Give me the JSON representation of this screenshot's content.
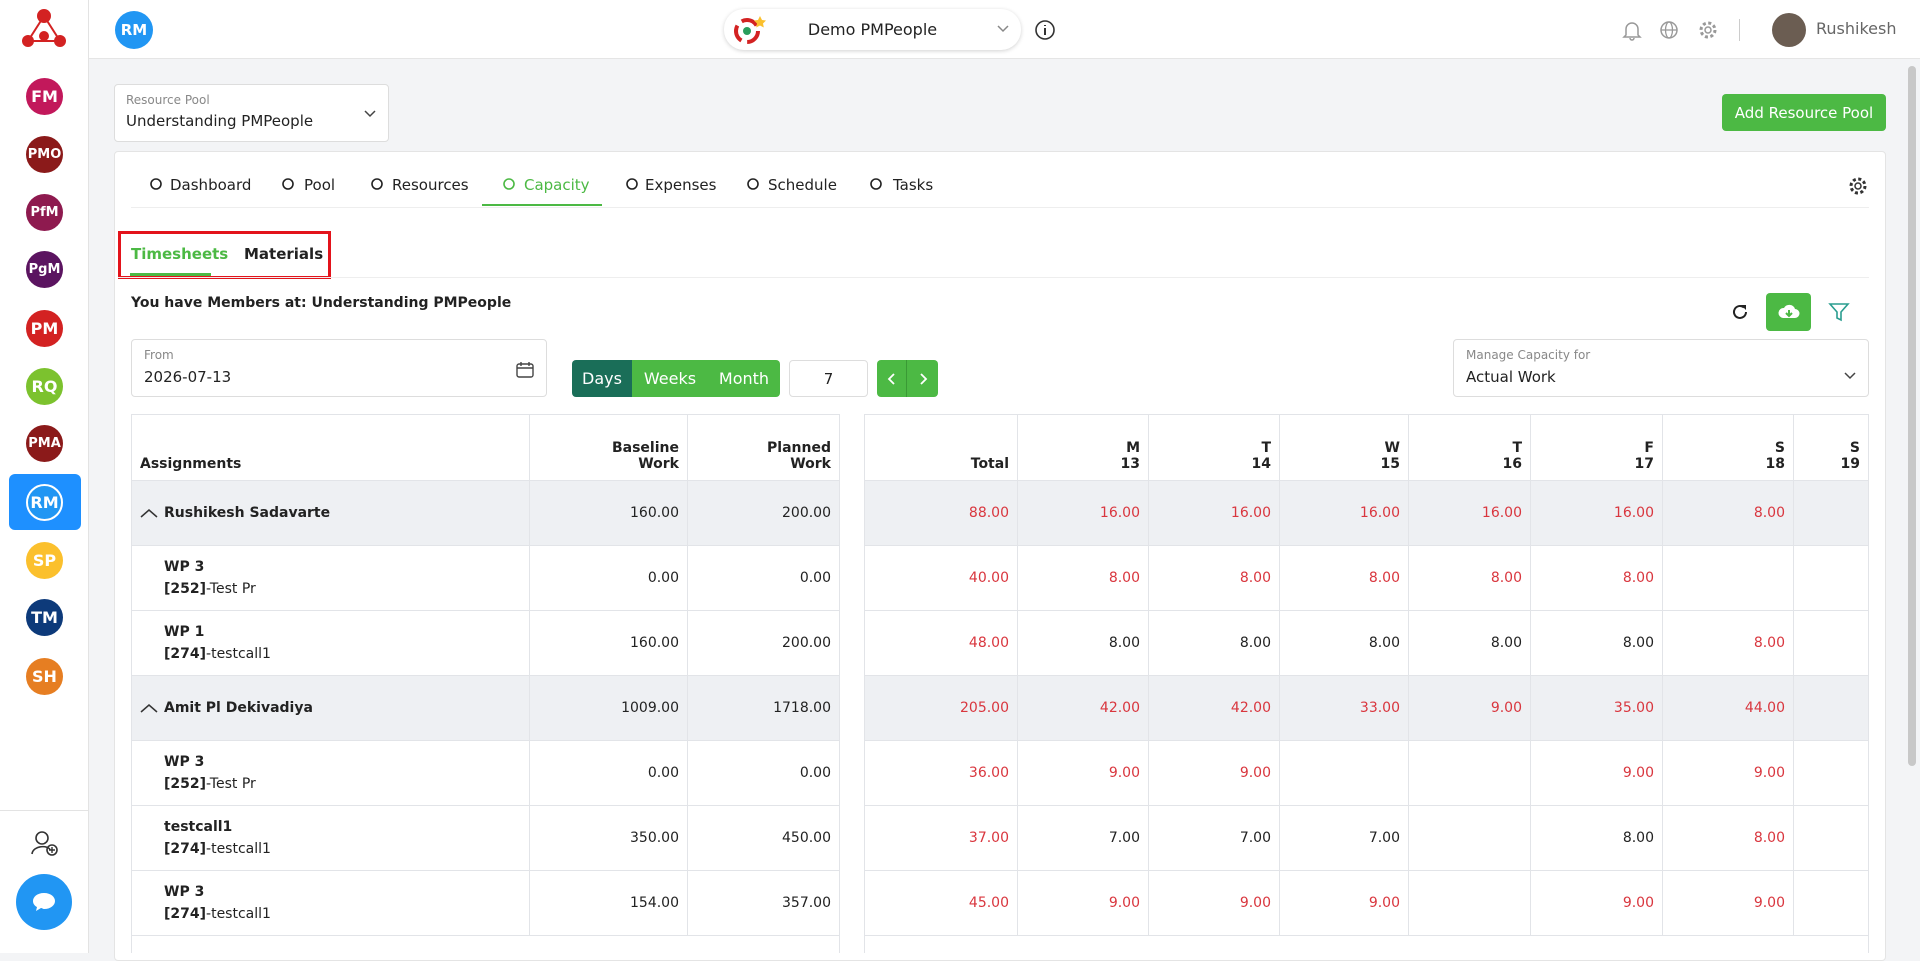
{
  "sidebar": {
    "apps": [
      {
        "label": "FM",
        "color": "#c2185b"
      },
      {
        "label": "PMO",
        "color": "#8b1a1a"
      },
      {
        "label": "PfM",
        "color": "#8e1a4f"
      },
      {
        "label": "PgM",
        "color": "#5b1460"
      },
      {
        "label": "PM",
        "color": "#d32222"
      },
      {
        "label": "RQ",
        "color": "#7cc22e"
      },
      {
        "label": "PMA",
        "color": "#8b1a1a"
      },
      {
        "label": "RM",
        "color": "#2196f3",
        "active": true
      },
      {
        "label": "SP",
        "color": "#fbc02d"
      },
      {
        "label": "TM",
        "color": "#0d3a7a"
      },
      {
        "label": "SH",
        "color": "#e67e22"
      }
    ]
  },
  "header": {
    "avatar": "RM",
    "project": "Demo PMPeople",
    "user": "Rushikesh"
  },
  "resource_pool": {
    "label": "Resource Pool",
    "value": "Understanding PMPeople",
    "button": "Add Resource Pool"
  },
  "tabs": [
    {
      "label": "Dashboard"
    },
    {
      "label": "Pool"
    },
    {
      "label": "Resources"
    },
    {
      "label": "Capacity",
      "active": true
    },
    {
      "label": "Expenses"
    },
    {
      "label": "Schedule"
    },
    {
      "label": "Tasks"
    }
  ],
  "subtabs": [
    {
      "label": "Timesheets",
      "active": true
    },
    {
      "label": "Materials"
    }
  ],
  "message": "You have Members at: Understanding PMPeople",
  "filters": {
    "from_label": "From",
    "from_value": "2026-07-13",
    "views": [
      {
        "label": "Days",
        "active": true
      },
      {
        "label": "Weeks"
      },
      {
        "label": "Month"
      }
    ],
    "count": "7",
    "manage_label": "Manage Capacity for",
    "manage_value": "Actual Work"
  },
  "table": {
    "headers": {
      "assignments": "Assignments",
      "baseline": [
        "Baseline",
        "Work"
      ],
      "planned": [
        "Planned",
        "Work"
      ],
      "total": "Total",
      "days": [
        {
          "day": "M",
          "date": "13"
        },
        {
          "day": "T",
          "date": "14"
        },
        {
          "day": "W",
          "date": "15"
        },
        {
          "day": "T",
          "date": "16"
        },
        {
          "day": "F",
          "date": "17"
        },
        {
          "day": "S",
          "date": "18"
        },
        {
          "day": "S",
          "date": "19"
        }
      ]
    },
    "rows": [
      {
        "group": true,
        "name": "Rushikesh Sadavarte",
        "baseline": "160.00",
        "planned": "200.00",
        "total": "88.00",
        "days": [
          "16.00",
          "16.00",
          "16.00",
          "16.00",
          "16.00",
          "8.00",
          null
        ],
        "red": [
          true,
          true,
          true,
          true,
          true,
          true,
          true,
          true
        ]
      },
      {
        "name": "WP 3",
        "code": "[252]",
        "project": "-Test Pr",
        "baseline": "0.00",
        "planned": "0.00",
        "total": "40.00",
        "days": [
          "8.00",
          "8.00",
          "8.00",
          "8.00",
          "8.00",
          null,
          null
        ],
        "red": [
          true,
          true,
          true,
          true,
          true,
          true,
          true,
          true
        ]
      },
      {
        "name": "WP 1",
        "code": "[274]",
        "project": "-testcall1",
        "baseline": "160.00",
        "planned": "200.00",
        "total": "48.00",
        "days": [
          "8.00",
          "8.00",
          "8.00",
          "8.00",
          "8.00",
          "8.00",
          null
        ],
        "red": [
          true,
          false,
          false,
          false,
          false,
          false,
          true,
          false
        ]
      },
      {
        "group": true,
        "name": "Amit Pl Dekivadiya",
        "baseline": "1009.00",
        "planned": "1718.00",
        "total": "205.00",
        "days": [
          "42.00",
          "42.00",
          "33.00",
          "9.00",
          "35.00",
          "44.00",
          null
        ],
        "red": [
          true,
          true,
          true,
          true,
          true,
          true,
          true,
          true
        ]
      },
      {
        "name": "WP 3",
        "code": "[252]",
        "project": "-Test Pr",
        "baseline": "0.00",
        "planned": "0.00",
        "total": "36.00",
        "days": [
          "9.00",
          "9.00",
          null,
          null,
          "9.00",
          "9.00",
          null
        ],
        "red": [
          true,
          true,
          true,
          true,
          true,
          true,
          true,
          true
        ]
      },
      {
        "name": "testcall1",
        "code": "[274]",
        "project": "-testcall1",
        "baseline": "350.00",
        "planned": "450.00",
        "total": "37.00",
        "days": [
          "7.00",
          "7.00",
          "7.00",
          null,
          "8.00",
          "8.00",
          null
        ],
        "red": [
          true,
          false,
          false,
          false,
          false,
          false,
          true,
          false
        ]
      },
      {
        "name": "WP 3",
        "code": "[274]",
        "project": "-testcall1",
        "baseline": "154.00",
        "planned": "357.00",
        "total": "45.00",
        "days": [
          "9.00",
          "9.00",
          "9.00",
          null,
          "9.00",
          "9.00",
          null
        ],
        "red": [
          true,
          true,
          true,
          true,
          true,
          true,
          true,
          true
        ]
      }
    ]
  }
}
